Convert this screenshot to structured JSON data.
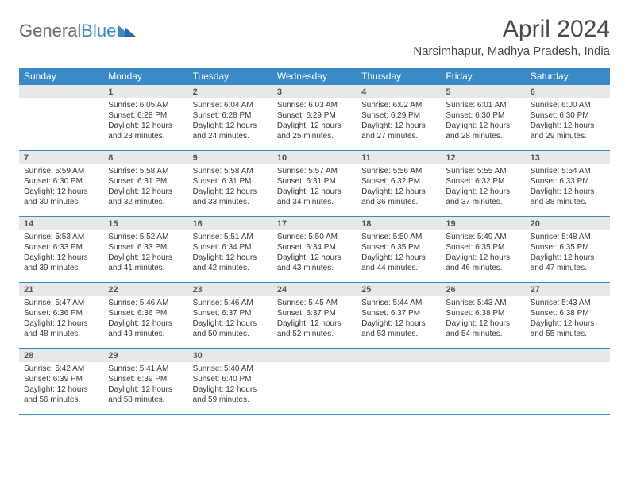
{
  "logo": {
    "text1": "General",
    "text2": "Blue"
  },
  "title": "April 2024",
  "location": "Narsimhapur, Madhya Pradesh, India",
  "colors": {
    "header_bg": "#3a8ac8",
    "header_text": "#ffffff",
    "daynum_bg": "#e8e8e8",
    "border": "#3a8ac8",
    "body_text": "#3a3a3a"
  },
  "day_names": [
    "Sunday",
    "Monday",
    "Tuesday",
    "Wednesday",
    "Thursday",
    "Friday",
    "Saturday"
  ],
  "weeks": [
    [
      {
        "num": "",
        "sunrise": "",
        "sunset": "",
        "daylight": ""
      },
      {
        "num": "1",
        "sunrise": "Sunrise: 6:05 AM",
        "sunset": "Sunset: 6:28 PM",
        "daylight": "Daylight: 12 hours and 23 minutes."
      },
      {
        "num": "2",
        "sunrise": "Sunrise: 6:04 AM",
        "sunset": "Sunset: 6:28 PM",
        "daylight": "Daylight: 12 hours and 24 minutes."
      },
      {
        "num": "3",
        "sunrise": "Sunrise: 6:03 AM",
        "sunset": "Sunset: 6:29 PM",
        "daylight": "Daylight: 12 hours and 25 minutes."
      },
      {
        "num": "4",
        "sunrise": "Sunrise: 6:02 AM",
        "sunset": "Sunset: 6:29 PM",
        "daylight": "Daylight: 12 hours and 27 minutes."
      },
      {
        "num": "5",
        "sunrise": "Sunrise: 6:01 AM",
        "sunset": "Sunset: 6:30 PM",
        "daylight": "Daylight: 12 hours and 28 minutes."
      },
      {
        "num": "6",
        "sunrise": "Sunrise: 6:00 AM",
        "sunset": "Sunset: 6:30 PM",
        "daylight": "Daylight: 12 hours and 29 minutes."
      }
    ],
    [
      {
        "num": "7",
        "sunrise": "Sunrise: 5:59 AM",
        "sunset": "Sunset: 6:30 PM",
        "daylight": "Daylight: 12 hours and 30 minutes."
      },
      {
        "num": "8",
        "sunrise": "Sunrise: 5:58 AM",
        "sunset": "Sunset: 6:31 PM",
        "daylight": "Daylight: 12 hours and 32 minutes."
      },
      {
        "num": "9",
        "sunrise": "Sunrise: 5:58 AM",
        "sunset": "Sunset: 6:31 PM",
        "daylight": "Daylight: 12 hours and 33 minutes."
      },
      {
        "num": "10",
        "sunrise": "Sunrise: 5:57 AM",
        "sunset": "Sunset: 6:31 PM",
        "daylight": "Daylight: 12 hours and 34 minutes."
      },
      {
        "num": "11",
        "sunrise": "Sunrise: 5:56 AM",
        "sunset": "Sunset: 6:32 PM",
        "daylight": "Daylight: 12 hours and 36 minutes."
      },
      {
        "num": "12",
        "sunrise": "Sunrise: 5:55 AM",
        "sunset": "Sunset: 6:32 PM",
        "daylight": "Daylight: 12 hours and 37 minutes."
      },
      {
        "num": "13",
        "sunrise": "Sunrise: 5:54 AM",
        "sunset": "Sunset: 6:33 PM",
        "daylight": "Daylight: 12 hours and 38 minutes."
      }
    ],
    [
      {
        "num": "14",
        "sunrise": "Sunrise: 5:53 AM",
        "sunset": "Sunset: 6:33 PM",
        "daylight": "Daylight: 12 hours and 39 minutes."
      },
      {
        "num": "15",
        "sunrise": "Sunrise: 5:52 AM",
        "sunset": "Sunset: 6:33 PM",
        "daylight": "Daylight: 12 hours and 41 minutes."
      },
      {
        "num": "16",
        "sunrise": "Sunrise: 5:51 AM",
        "sunset": "Sunset: 6:34 PM",
        "daylight": "Daylight: 12 hours and 42 minutes."
      },
      {
        "num": "17",
        "sunrise": "Sunrise: 5:50 AM",
        "sunset": "Sunset: 6:34 PM",
        "daylight": "Daylight: 12 hours and 43 minutes."
      },
      {
        "num": "18",
        "sunrise": "Sunrise: 5:50 AM",
        "sunset": "Sunset: 6:35 PM",
        "daylight": "Daylight: 12 hours and 44 minutes."
      },
      {
        "num": "19",
        "sunrise": "Sunrise: 5:49 AM",
        "sunset": "Sunset: 6:35 PM",
        "daylight": "Daylight: 12 hours and 46 minutes."
      },
      {
        "num": "20",
        "sunrise": "Sunrise: 5:48 AM",
        "sunset": "Sunset: 6:35 PM",
        "daylight": "Daylight: 12 hours and 47 minutes."
      }
    ],
    [
      {
        "num": "21",
        "sunrise": "Sunrise: 5:47 AM",
        "sunset": "Sunset: 6:36 PM",
        "daylight": "Daylight: 12 hours and 48 minutes."
      },
      {
        "num": "22",
        "sunrise": "Sunrise: 5:46 AM",
        "sunset": "Sunset: 6:36 PM",
        "daylight": "Daylight: 12 hours and 49 minutes."
      },
      {
        "num": "23",
        "sunrise": "Sunrise: 5:46 AM",
        "sunset": "Sunset: 6:37 PM",
        "daylight": "Daylight: 12 hours and 50 minutes."
      },
      {
        "num": "24",
        "sunrise": "Sunrise: 5:45 AM",
        "sunset": "Sunset: 6:37 PM",
        "daylight": "Daylight: 12 hours and 52 minutes."
      },
      {
        "num": "25",
        "sunrise": "Sunrise: 5:44 AM",
        "sunset": "Sunset: 6:37 PM",
        "daylight": "Daylight: 12 hours and 53 minutes."
      },
      {
        "num": "26",
        "sunrise": "Sunrise: 5:43 AM",
        "sunset": "Sunset: 6:38 PM",
        "daylight": "Daylight: 12 hours and 54 minutes."
      },
      {
        "num": "27",
        "sunrise": "Sunrise: 5:43 AM",
        "sunset": "Sunset: 6:38 PM",
        "daylight": "Daylight: 12 hours and 55 minutes."
      }
    ],
    [
      {
        "num": "28",
        "sunrise": "Sunrise: 5:42 AM",
        "sunset": "Sunset: 6:39 PM",
        "daylight": "Daylight: 12 hours and 56 minutes."
      },
      {
        "num": "29",
        "sunrise": "Sunrise: 5:41 AM",
        "sunset": "Sunset: 6:39 PM",
        "daylight": "Daylight: 12 hours and 58 minutes."
      },
      {
        "num": "30",
        "sunrise": "Sunrise: 5:40 AM",
        "sunset": "Sunset: 6:40 PM",
        "daylight": "Daylight: 12 hours and 59 minutes."
      },
      {
        "num": "",
        "sunrise": "",
        "sunset": "",
        "daylight": ""
      },
      {
        "num": "",
        "sunrise": "",
        "sunset": "",
        "daylight": ""
      },
      {
        "num": "",
        "sunrise": "",
        "sunset": "",
        "daylight": ""
      },
      {
        "num": "",
        "sunrise": "",
        "sunset": "",
        "daylight": ""
      }
    ]
  ]
}
